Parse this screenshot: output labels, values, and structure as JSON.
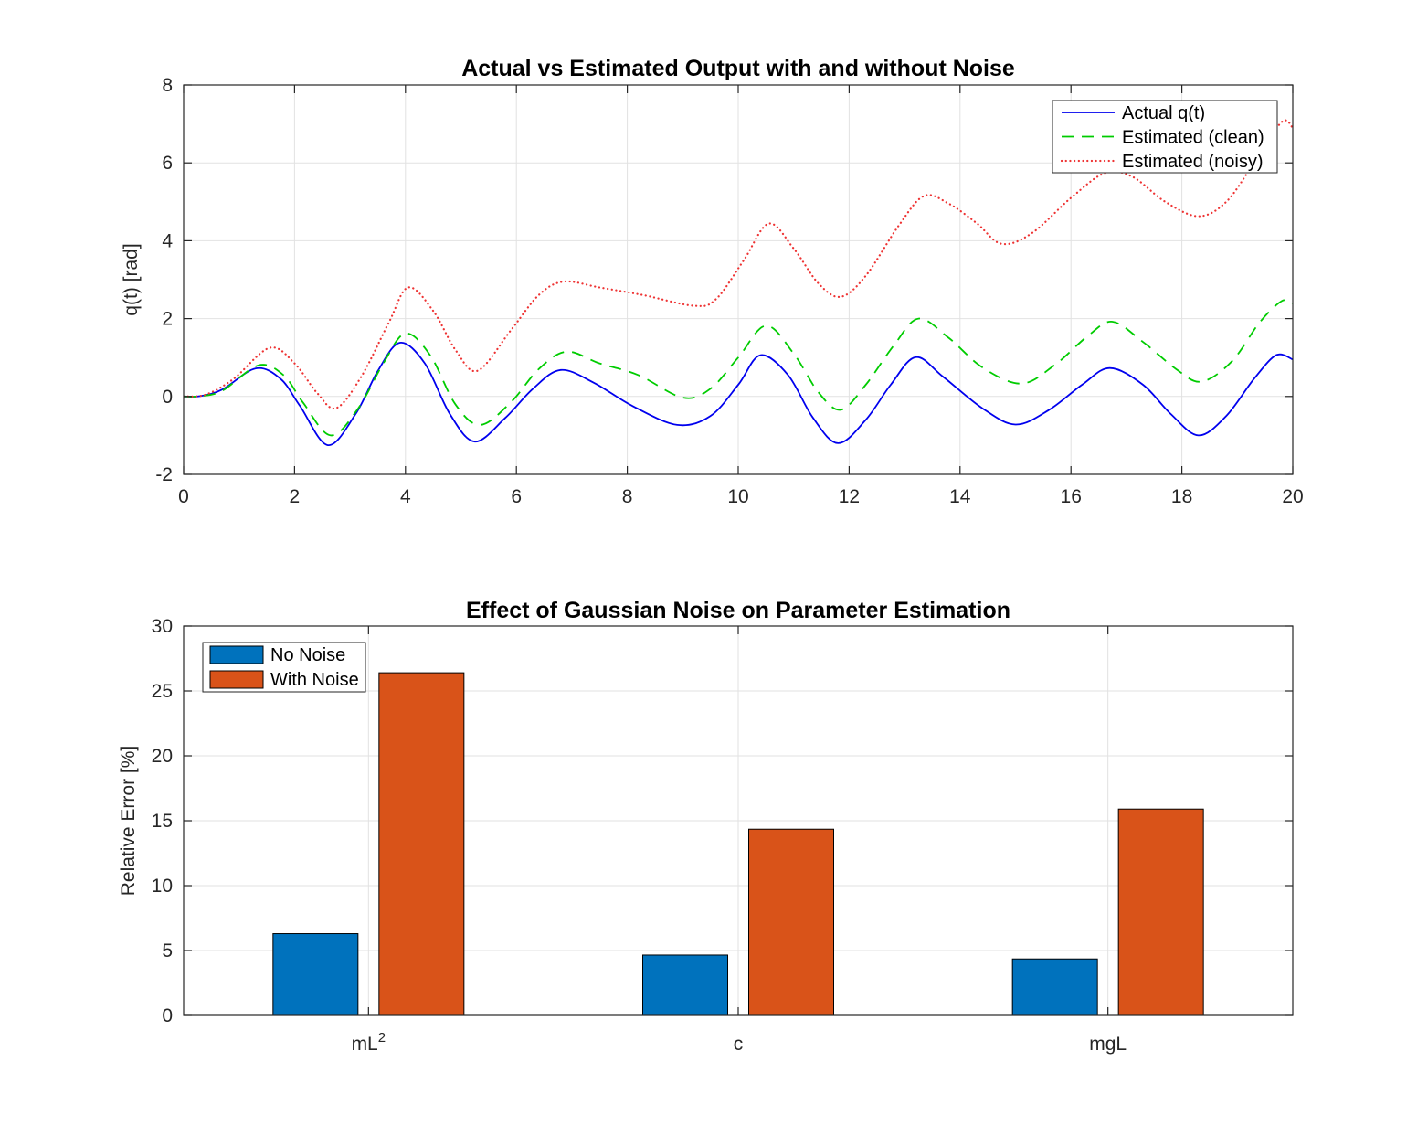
{
  "figure": {
    "background": "#ffffff",
    "frame_color": "#262626",
    "grid_color": "#e2e2e2"
  },
  "chart_data": [
    {
      "type": "line",
      "title": "Actual vs Estimated Output with and without Noise",
      "xlabel": "",
      "ylabel": "q(t) [rad]",
      "xlim": [
        0,
        20
      ],
      "ylim": [
        -2,
        8
      ],
      "xticks": [
        0,
        2,
        4,
        6,
        8,
        10,
        12,
        14,
        16,
        18,
        20
      ],
      "yticks": [
        -2,
        0,
        2,
        4,
        6,
        8
      ],
      "grid": true,
      "legend_position": "top-right",
      "series": [
        {
          "name": "Actual q(t)",
          "color": "#0000ee",
          "style": "solid",
          "points": [
            [
              0,
              0
            ],
            [
              0.3,
              0.01
            ],
            [
              0.7,
              0.18
            ],
            [
              1.3,
              0.72
            ],
            [
              1.75,
              0.45
            ],
            [
              2.1,
              -0.25
            ],
            [
              2.6,
              -1.25
            ],
            [
              3.1,
              -0.45
            ],
            [
              3.5,
              0.65
            ],
            [
              3.9,
              1.38
            ],
            [
              4.35,
              0.85
            ],
            [
              4.8,
              -0.45
            ],
            [
              5.25,
              -1.16
            ],
            [
              5.8,
              -0.55
            ],
            [
              6.3,
              0.2
            ],
            [
              6.8,
              0.68
            ],
            [
              7.4,
              0.35
            ],
            [
              8.1,
              -0.25
            ],
            [
              8.9,
              -0.73
            ],
            [
              9.5,
              -0.5
            ],
            [
              10.0,
              0.3
            ],
            [
              10.4,
              1.06
            ],
            [
              10.9,
              0.55
            ],
            [
              11.35,
              -0.55
            ],
            [
              11.8,
              -1.2
            ],
            [
              12.3,
              -0.6
            ],
            [
              12.75,
              0.3
            ],
            [
              13.2,
              1.01
            ],
            [
              13.7,
              0.5
            ],
            [
              14.4,
              -0.3
            ],
            [
              15.0,
              -0.72
            ],
            [
              15.6,
              -0.35
            ],
            [
              16.2,
              0.3
            ],
            [
              16.7,
              0.73
            ],
            [
              17.3,
              0.3
            ],
            [
              17.8,
              -0.45
            ],
            [
              18.3,
              -1.0
            ],
            [
              18.8,
              -0.5
            ],
            [
              19.3,
              0.45
            ],
            [
              19.7,
              1.06
            ],
            [
              20,
              0.95
            ]
          ]
        },
        {
          "name": "Estimated (clean)",
          "color": "#00cc00",
          "style": "dashed",
          "points": [
            [
              0,
              0
            ],
            [
              0.3,
              0.01
            ],
            [
              0.7,
              0.15
            ],
            [
              1.35,
              0.8
            ],
            [
              1.8,
              0.55
            ],
            [
              2.15,
              -0.15
            ],
            [
              2.65,
              -1.0
            ],
            [
              3.15,
              -0.3
            ],
            [
              3.6,
              0.85
            ],
            [
              4.0,
              1.62
            ],
            [
              4.45,
              1.05
            ],
            [
              4.9,
              -0.2
            ],
            [
              5.35,
              -0.73
            ],
            [
              5.9,
              -0.15
            ],
            [
              6.4,
              0.7
            ],
            [
              6.9,
              1.15
            ],
            [
              7.5,
              0.85
            ],
            [
              8.2,
              0.55
            ],
            [
              9.0,
              -0.03
            ],
            [
              9.5,
              0.2
            ],
            [
              10.0,
              1.0
            ],
            [
              10.5,
              1.82
            ],
            [
              11.0,
              1.1
            ],
            [
              11.45,
              0.1
            ],
            [
              11.85,
              -0.34
            ],
            [
              12.3,
              0.3
            ],
            [
              12.8,
              1.3
            ],
            [
              13.25,
              2.0
            ],
            [
              13.8,
              1.5
            ],
            [
              14.4,
              0.75
            ],
            [
              15.1,
              0.33
            ],
            [
              15.7,
              0.8
            ],
            [
              16.3,
              1.55
            ],
            [
              16.75,
              1.92
            ],
            [
              17.3,
              1.4
            ],
            [
              17.9,
              0.7
            ],
            [
              18.35,
              0.38
            ],
            [
              18.9,
              0.9
            ],
            [
              19.4,
              1.9
            ],
            [
              19.8,
              2.45
            ],
            [
              20,
              2.4
            ]
          ]
        },
        {
          "name": "Estimated (noisy)",
          "color": "#ee3333",
          "style": "dotted",
          "points": [
            [
              0,
              0
            ],
            [
              0.4,
              0.05
            ],
            [
              0.9,
              0.45
            ],
            [
              1.55,
              1.25
            ],
            [
              2.0,
              0.85
            ],
            [
              2.4,
              0.1
            ],
            [
              2.75,
              -0.3
            ],
            [
              3.2,
              0.5
            ],
            [
              3.7,
              1.9
            ],
            [
              4.05,
              2.8
            ],
            [
              4.5,
              2.2
            ],
            [
              4.9,
              1.2
            ],
            [
              5.3,
              0.66
            ],
            [
              5.9,
              1.7
            ],
            [
              6.4,
              2.6
            ],
            [
              6.85,
              2.95
            ],
            [
              7.5,
              2.8
            ],
            [
              8.3,
              2.6
            ],
            [
              9.2,
              2.33
            ],
            [
              9.6,
              2.5
            ],
            [
              10.1,
              3.5
            ],
            [
              10.55,
              4.44
            ],
            [
              11.0,
              3.8
            ],
            [
              11.45,
              2.9
            ],
            [
              11.85,
              2.56
            ],
            [
              12.3,
              3.1
            ],
            [
              12.9,
              4.4
            ],
            [
              13.35,
              5.15
            ],
            [
              13.8,
              4.95
            ],
            [
              14.3,
              4.45
            ],
            [
              14.75,
              3.92
            ],
            [
              15.3,
              4.2
            ],
            [
              16.0,
              5.1
            ],
            [
              16.6,
              5.73
            ],
            [
              17.1,
              5.65
            ],
            [
              17.7,
              5.0
            ],
            [
              18.3,
              4.63
            ],
            [
              18.8,
              5.0
            ],
            [
              19.3,
              6.0
            ],
            [
              19.8,
              7.05
            ],
            [
              20,
              6.9
            ]
          ]
        }
      ]
    },
    {
      "type": "bar",
      "title": "Effect of Gaussian Noise on Parameter Estimation",
      "xlabel": "",
      "ylabel": "Relative Error [%]",
      "ylim": [
        0,
        30
      ],
      "yticks": [
        0,
        5,
        10,
        15,
        20,
        25,
        30
      ],
      "grid": true,
      "legend_position": "top-left",
      "categories": [
        {
          "label": "mL",
          "sup": "2"
        },
        {
          "label": "c",
          "sup": ""
        },
        {
          "label": "mgL",
          "sup": ""
        }
      ],
      "series": [
        {
          "name": "No Noise",
          "color": "#0072bd",
          "values": [
            6.3,
            4.65,
            4.35
          ]
        },
        {
          "name": "With Noise",
          "color": "#d95319",
          "values": [
            26.4,
            14.35,
            15.9
          ]
        }
      ]
    }
  ]
}
